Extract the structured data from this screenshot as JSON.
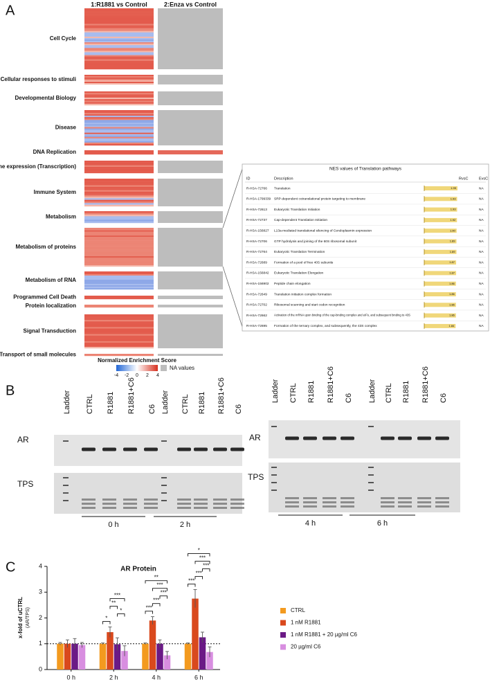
{
  "panel_a": {
    "label": "A",
    "column_titles": [
      "1:R1881 vs Control",
      "2:Enza vs Control"
    ],
    "categories": [
      "Cell Cycle",
      "Cellular responses to stimuli",
      "Developmental Biology",
      "Disease",
      "DNA Replication",
      "Gene expression (Transcription)",
      "Immune System",
      "Metabolism",
      "Metabolism of proteins",
      "Metabolism of RNA",
      "Programmed Cell Death",
      "Protein localization",
      "Signal Transduction",
      "Transport of small molecules"
    ],
    "legend_title": "Normalized Enrichment Score",
    "legend_ticks": [
      -4,
      -2,
      0,
      2,
      4
    ],
    "na_label": "NA values"
  },
  "table": {
    "title": "NES values of Translation pathways",
    "headers": [
      "ID",
      "Description",
      "RvsC",
      "EvsC"
    ],
    "rows": [
      {
        "id": "R-HSA-72766",
        "description": "Translation",
        "nes": 1.95,
        "nes_label": "1.95",
        "evsc": "NA"
      },
      {
        "id": "R-HSA-1799339",
        "description": "SRP-dependent cotranslational protein targeting to membrane",
        "nes": 1.93,
        "nes_label": "1.93",
        "evsc": "NA"
      },
      {
        "id": "R-HSA-72613",
        "description": "Eukaryotic Translation Initiation",
        "nes": 1.93,
        "nes_label": "1.93",
        "evsc": "NA"
      },
      {
        "id": "R-HSA-72737",
        "description": "Cap-dependent Translation Initiation",
        "nes": 1.92,
        "nes_label": "1.92",
        "evsc": "NA"
      },
      {
        "id": "R-HSA-156827",
        "description": "L13a-mediated translational silencing of Ceruloplasmin expression",
        "nes": 1.9,
        "nes_label": "1.90",
        "evsc": "NA"
      },
      {
        "id": "R-HSA-72706",
        "description": "GTP hydrolysis and joining of the 60S ribosomal subunit",
        "nes": 1.89,
        "nes_label": "1.89",
        "evsc": "NA"
      },
      {
        "id": "R-HSA-72764",
        "description": "Eukaryotic Translation Termination",
        "nes": 1.89,
        "nes_label": "1.89",
        "evsc": "NA"
      },
      {
        "id": "R-HSA-72689",
        "description": "Formation of a pool of free 40S subunits",
        "nes": 1.87,
        "nes_label": "1.87",
        "evsc": "NA"
      },
      {
        "id": "R-HSA-156842",
        "description": "Eukaryotic Translation Elongation",
        "nes": 1.87,
        "nes_label": "1.87",
        "evsc": "NA"
      },
      {
        "id": "R-HSA-156902",
        "description": "Peptide chain elongation",
        "nes": 1.86,
        "nes_label": "1.86",
        "evsc": "NA"
      },
      {
        "id": "R-HSA-72649",
        "description": "Translation initiation complex formation",
        "nes": 1.86,
        "nes_label": "1.86",
        "evsc": "NA"
      },
      {
        "id": "R-HSA-72702",
        "description": "Ribosomal scanning and start codon recognition",
        "nes": 1.86,
        "nes_label": "1.86",
        "evsc": "NA"
      },
      {
        "id": "R-HSA-72662",
        "description": "Activation of the mRNA upon binding of the cap-binding complex and eIFs, and subsequent binding to 43S",
        "nes": 1.86,
        "nes_label": "1.86",
        "evsc": "NA"
      },
      {
        "id": "R-HSA-72695",
        "description": "Formation of the ternary complex, and subsequently, the 43S complex",
        "nes": 1.84,
        "nes_label": "1.84",
        "evsc": "NA"
      }
    ]
  },
  "panel_b": {
    "label": "B",
    "blots": [
      {
        "lanes": [
          "Ladder",
          "CTRL",
          "R1881",
          "R1881+C6",
          "C6",
          "Ladder",
          "CTRL",
          "R1881",
          "R1881+C6",
          "C6"
        ],
        "rows": [
          "AR",
          "TPS"
        ],
        "times": [
          "0 h",
          "2 h"
        ]
      },
      {
        "lanes": [
          "Ladder",
          "CTRL",
          "R1881",
          "R1881+C6",
          "C6",
          "Ladder",
          "CTRL",
          "R1881",
          "R1881+C6",
          "C6"
        ],
        "rows": [
          "AR",
          "TPS"
        ],
        "times": [
          "4 h",
          "6 h"
        ]
      }
    ]
  },
  "chart_data": {
    "type": "bar",
    "label": "C",
    "title": "AR Protein",
    "y_label": "x-fold of uCTRL",
    "y_sublabel": "(AR/TPS)",
    "categories": [
      "0 h",
      "2 h",
      "4 h",
      "6 h"
    ],
    "series": [
      {
        "name": "CTRL",
        "color": "#f39a1f",
        "values": [
          1,
          1,
          1,
          1
        ],
        "errors": [
          0.05,
          0.03,
          0.03,
          0.03
        ]
      },
      {
        "name": "1 nM R1881",
        "color": "#d9491d",
        "values": [
          1,
          1.45,
          1.9,
          2.75
        ],
        "errors": [
          0.15,
          0.2,
          0.15,
          0.35
        ]
      },
      {
        "name": "1 nM R1881 + 20 µg/ml C6",
        "color": "#6b1a86",
        "values": [
          1,
          0.98,
          1,
          1.25
        ],
        "errors": [
          0.2,
          0.25,
          0.15,
          0.2
        ]
      },
      {
        "name": "20 µg/ml C6",
        "color": "#d88ee0",
        "values": [
          0.95,
          0.72,
          0.55,
          0.68
        ],
        "errors": [
          0.1,
          0.2,
          0.15,
          0.2
        ]
      }
    ],
    "reference_line": 1,
    "ylim": [
      0,
      4
    ],
    "yticks": [
      0,
      1,
      2,
      3,
      4
    ],
    "annotations": [
      {
        "category": 1,
        "pair": [
          0,
          1
        ],
        "label": "*"
      },
      {
        "category": 1,
        "pair": [
          2,
          3
        ],
        "label": "*"
      },
      {
        "category": 1,
        "pair": [
          1,
          2
        ],
        "label": "**"
      },
      {
        "category": 1,
        "pair": [
          1,
          3
        ],
        "label": "***"
      },
      {
        "category": 2,
        "pair": [
          0,
          1
        ],
        "label": "***"
      },
      {
        "category": 2,
        "pair": [
          1,
          2
        ],
        "label": "***"
      },
      {
        "category": 2,
        "pair": [
          2,
          3
        ],
        "label": "***"
      },
      {
        "category": 2,
        "pair": [
          1,
          3
        ],
        "label": "***"
      },
      {
        "category": 2,
        "pair": [
          0,
          3
        ],
        "label": "**"
      },
      {
        "category": 3,
        "pair": [
          0,
          1
        ],
        "label": "***"
      },
      {
        "category": 3,
        "pair": [
          1,
          2
        ],
        "label": "***"
      },
      {
        "category": 3,
        "pair": [
          2,
          3
        ],
        "label": "***"
      },
      {
        "category": 3,
        "pair": [
          1,
          3
        ],
        "label": "***"
      },
      {
        "category": 3,
        "pair": [
          0,
          3
        ],
        "label": "*"
      }
    ]
  }
}
